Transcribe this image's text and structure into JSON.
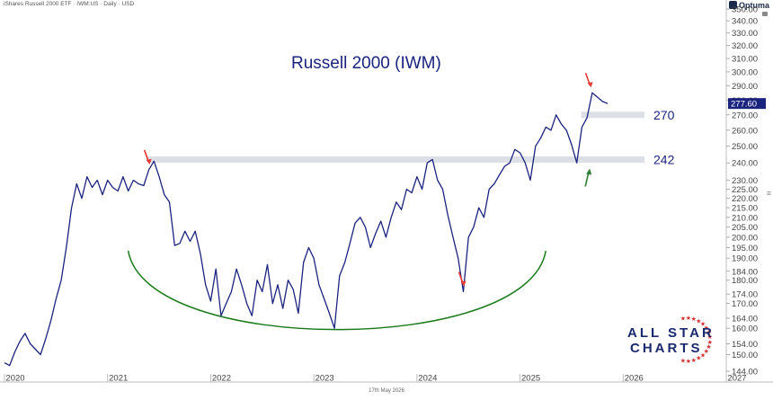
{
  "header": {
    "instrument": "iShares Russell 2000 ETF · IWM:US · Daily · USD",
    "brand": "Optuma",
    "footer_date": "17th May 2026"
  },
  "logo": {
    "line1": "ALL STAR",
    "line2": "CHARTS"
  },
  "chart_data": {
    "type": "line",
    "title": "Russell 2000 (IWM)",
    "xlabel": "",
    "ylabel": "",
    "x_ticks": [
      "2020",
      "2021",
      "2022",
      "2023",
      "2024",
      "2025",
      "2026",
      "2027"
    ],
    "x_range": [
      2020.0,
      2027.0
    ],
    "y_scale": "log",
    "y_range": [
      144.0,
      350.0
    ],
    "y_ticks": [
      144,
      150,
      154,
      160,
      164,
      170,
      174,
      180,
      184,
      190,
      195,
      200,
      205,
      210,
      215,
      220,
      225,
      230,
      240,
      250,
      260,
      270,
      280,
      290,
      300,
      310,
      320,
      330,
      340,
      350
    ],
    "y_tick_labels": [
      "144.00",
      "150.00",
      "154.00",
      "160.00",
      "164.00",
      "170.00",
      "174.00",
      "180.00",
      "184.00",
      "190.00",
      "195.00",
      "200.00",
      "205.00",
      "210.00",
      "215.00",
      "220.00",
      "225.00",
      "230.00",
      "240.00",
      "250.00",
      "260.00",
      "270.00",
      "280.00",
      "290.00",
      "300.00",
      "310.00",
      "320.00",
      "330.00",
      "340.00",
      "350.00"
    ],
    "last_price": 277.6,
    "last_price_label": "277.60",
    "line_color": "#1a237e",
    "series": [
      {
        "x": [
          2020.0,
          2020.05,
          2020.1,
          2020.15,
          2020.2,
          2020.25,
          2020.3,
          2020.35,
          2020.4,
          2020.45,
          2020.5,
          2020.55,
          2020.6,
          2020.65,
          2020.7,
          2020.75,
          2020.8,
          2020.85,
          2020.9,
          2020.95,
          2021.0,
          2021.05,
          2021.1,
          2021.15,
          2021.2,
          2021.25,
          2021.3,
          2021.35,
          2021.4,
          2021.45,
          2021.5,
          2021.55,
          2021.6,
          2021.65,
          2021.7,
          2021.75,
          2021.8,
          2021.85,
          2021.9,
          2021.95,
          2022.0,
          2022.05,
          2022.1,
          2022.15,
          2022.2,
          2022.25,
          2022.3,
          2022.35,
          2022.4,
          2022.45,
          2022.5,
          2022.55,
          2022.6,
          2022.65,
          2022.7,
          2022.75,
          2022.8,
          2022.85,
          2022.9,
          2022.95,
          2023.0,
          2023.05,
          2023.1,
          2023.15,
          2023.2,
          2023.25,
          2023.3,
          2023.35,
          2023.4,
          2023.45,
          2023.5,
          2023.55,
          2023.6,
          2023.65,
          2023.7,
          2023.75,
          2023.8,
          2023.85,
          2023.9,
          2023.95,
          2024.0,
          2024.05,
          2024.1,
          2024.15,
          2024.2,
          2024.25,
          2024.3,
          2024.35,
          2024.4,
          2024.45,
          2024.5,
          2024.55,
          2024.6,
          2024.65,
          2024.7,
          2024.75,
          2024.8,
          2024.85,
          2024.9,
          2024.95,
          2025.0,
          2025.05,
          2025.1,
          2025.15,
          2025.2,
          2025.25,
          2025.3,
          2025.35,
          2025.4,
          2025.45,
          2025.5,
          2025.55,
          2025.6,
          2025.65,
          2025.7,
          2025.75,
          2025.8,
          2025.85
        ],
        "values": [
          147,
          146,
          151,
          155,
          158,
          154,
          152,
          150,
          156,
          163,
          172,
          180,
          195,
          215,
          228,
          220,
          232,
          226,
          230,
          222,
          230,
          226,
          224,
          232,
          224,
          230,
          228,
          227,
          236,
          241,
          232,
          222,
          218,
          196,
          197,
          203,
          198,
          203,
          192,
          178,
          171,
          185,
          165,
          170,
          175,
          185,
          178,
          170,
          165,
          180,
          175,
          187,
          170,
          178,
          168,
          180,
          176,
          166,
          188,
          195,
          190,
          178,
          172,
          166,
          160,
          182,
          188,
          197,
          207,
          210,
          205,
          195,
          202,
          208,
          200,
          210,
          218,
          214,
          225,
          223,
          232,
          225,
          240,
          242,
          230,
          225,
          211,
          200,
          190,
          175,
          200,
          205,
          215,
          210,
          225,
          228,
          233,
          238,
          240,
          248,
          246,
          240,
          230,
          250,
          255,
          262,
          260,
          270,
          264,
          260,
          251,
          240,
          262,
          268,
          285,
          282,
          279,
          277.6
        ]
      }
    ],
    "annotations": {
      "levels": [
        {
          "value": 270,
          "label": "270"
        },
        {
          "value": 242,
          "label": "242"
        }
      ],
      "red_arrows": [
        2021.4,
        2024.45,
        2025.68
      ],
      "green_arrow": 2025.72,
      "base_arc": {
        "x_start": 2021.2,
        "x_end": 2025.25,
        "low_value": 158
      }
    }
  }
}
